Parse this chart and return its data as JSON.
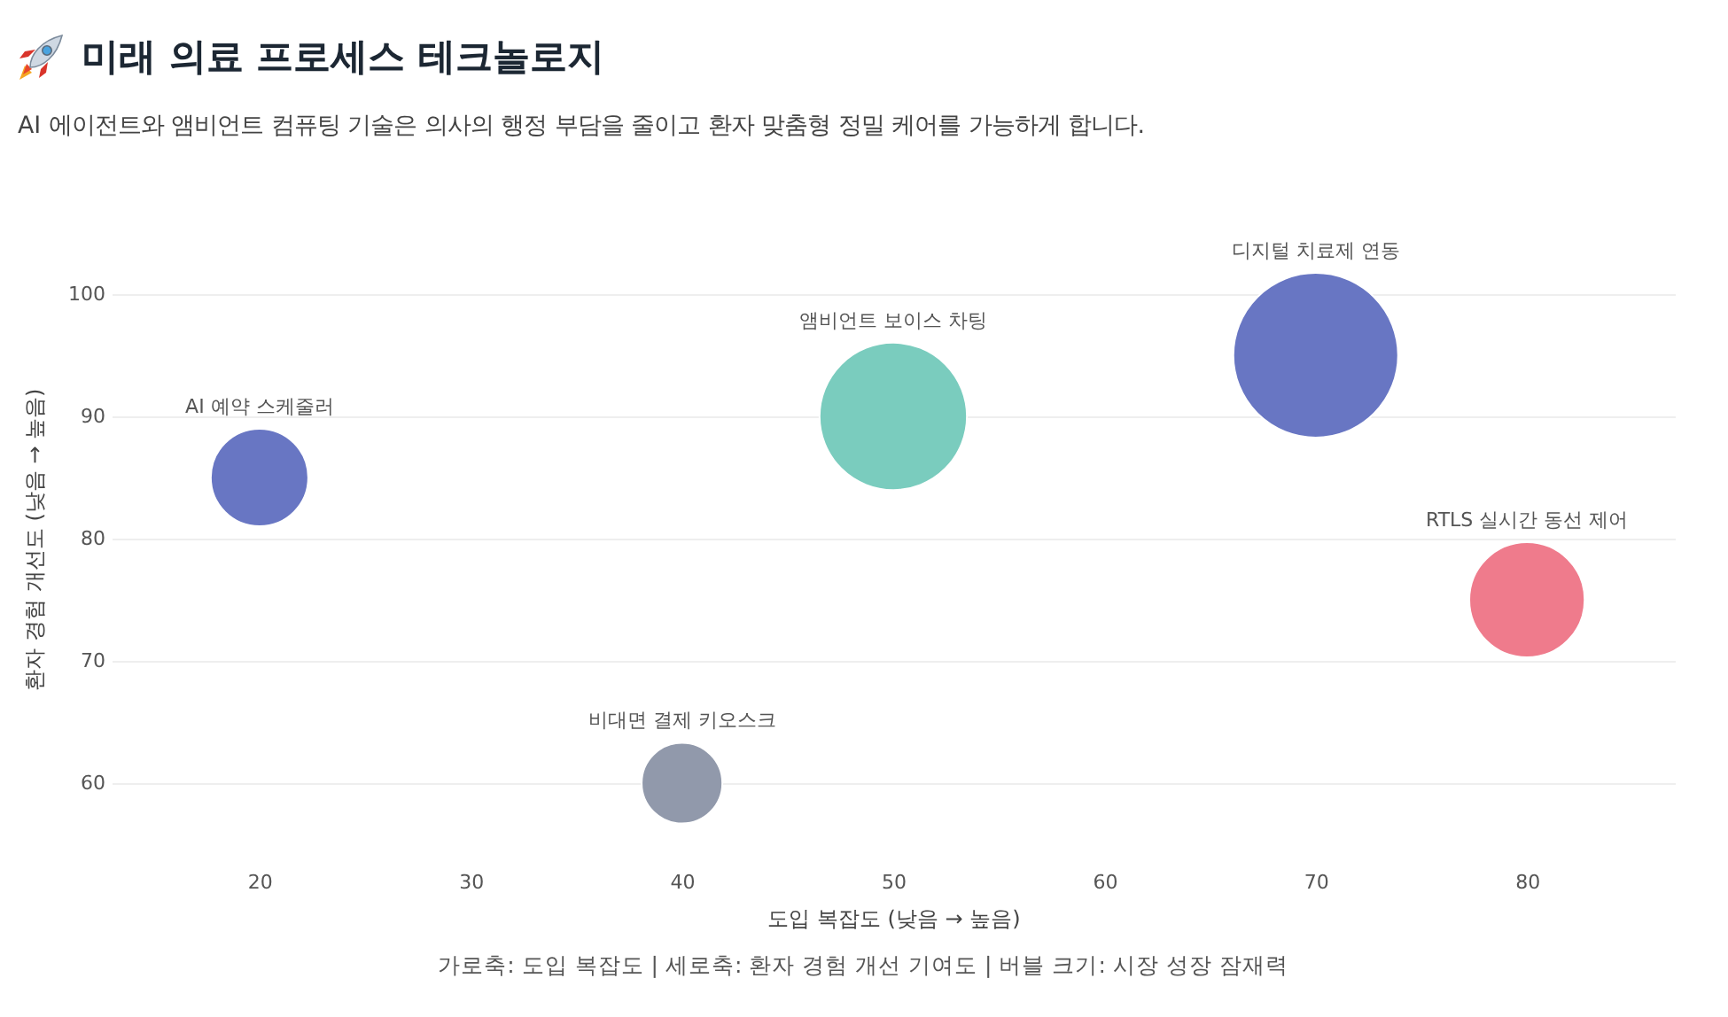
{
  "chart_data": {
    "type": "bubble",
    "title": "미래 의료 프로세스 테크놀로지",
    "subtitle": "AI 에이전트와 앰비언트 컴퓨팅 기술은 의사의 행정 부담을 줄이고 환자 맞춤형 정밀 케어를 가능하게 합니다.",
    "xlabel": "도입 복잡도 (낮음 → 높음)",
    "ylabel": "환자 경험 개선도 (낮음 → 높음)",
    "series": [
      {
        "name": "AI 예약 스케줄러",
        "color": "#6876c3",
        "x": [
          20
        ],
        "values": [
          85
        ],
        "sizes": [
          0.35
        ]
      },
      {
        "name": "비대면 결제 키오스크",
        "color": "#9199ab",
        "x": [
          40
        ],
        "values": [
          60
        ],
        "sizes": [
          0.24
        ]
      },
      {
        "name": "앰비언트 보이스 차팅",
        "color": "#7accbe",
        "x": [
          50
        ],
        "values": [
          90
        ],
        "sizes": [
          0.8
        ]
      },
      {
        "name": "디지털 치료제 연동",
        "color": "#6876c3",
        "x": [
          70
        ],
        "values": [
          95
        ],
        "sizes": [
          1
        ]
      },
      {
        "name": "RTLS 실시간 동선 제어",
        "color": "#ef7b8c",
        "x": [
          80
        ],
        "values": [
          75
        ],
        "sizes": [
          0.49
        ]
      }
    ],
    "xlim": [
      13,
      87
    ],
    "ylim": [
      60,
      100
    ],
    "xticks": [
      20,
      30,
      40,
      50,
      60,
      70,
      80
    ],
    "yticks": [
      60,
      70,
      80,
      90,
      100
    ],
    "grid": "y",
    "legend": false,
    "marker": "circle",
    "annotations": [
      "가로축: 도입 복잡도 | 세로축: 환자 경험 개선 기여도 | 버블 크기: 시장 성장 잠재력"
    ]
  }
}
